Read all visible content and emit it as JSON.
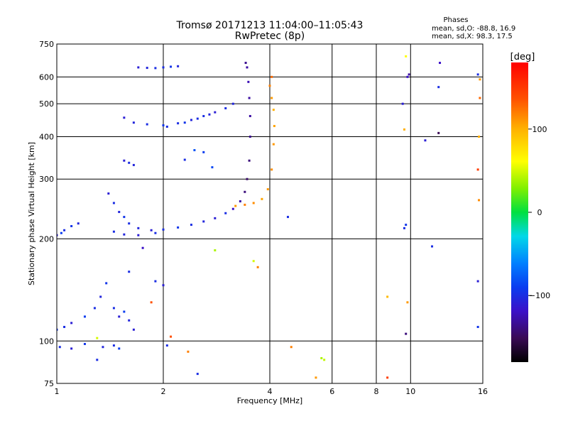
{
  "chart_data": {
    "type": "scatter",
    "title": "Tromsø 20171213 11:04:00–11:05:43",
    "subtitle": "RwPretec (8p)",
    "stats": {
      "heading": "Phases",
      "line_o": "mean, sd,O: -88.8, 16.9",
      "line_x": "mean, sd,X:  98.3, 17.5"
    },
    "xlabel": "Frequency [MHz]",
    "ylabel": "Stationary phase Virtual Height [km]",
    "x_scale": "log",
    "y_scale": "log",
    "xlim": [
      1,
      16
    ],
    "ylim": [
      75,
      750
    ],
    "x_ticks": [
      1,
      2,
      4,
      6,
      8,
      10,
      16
    ],
    "x_tick_labels": [
      "1",
      "2",
      "4",
      "6",
      "8",
      "10",
      "16"
    ],
    "y_ticks": [
      75,
      100,
      200,
      300,
      400,
      500,
      600,
      750
    ],
    "y_tick_labels": [
      "75",
      "100",
      "200",
      "300",
      "400",
      "500",
      "600",
      "750"
    ],
    "grid": true,
    "colorbar": {
      "label": "[deg]",
      "range": [
        -180,
        180
      ],
      "ticks": [
        100,
        0,
        -100
      ],
      "tick_labels": [
        "100",
        "0",
        "−100"
      ]
    },
    "series": [
      {
        "points": [
          [
            1.0,
            205,
            -110
          ],
          [
            1.05,
            212,
            -100
          ],
          [
            1.1,
            218,
            -95
          ],
          [
            1.15,
            222,
            -105
          ],
          [
            1.03,
            208,
            -90
          ],
          [
            1.0,
            108,
            -95
          ],
          [
            1.05,
            110,
            -100
          ],
          [
            1.1,
            113,
            -110
          ],
          [
            1.2,
            118,
            -90
          ],
          [
            1.28,
            125,
            -100
          ],
          [
            1.33,
            135,
            -105
          ],
          [
            1.38,
            148,
            -95
          ],
          [
            1.45,
            125,
            -100
          ],
          [
            1.5,
            118,
            -110
          ],
          [
            1.55,
            122,
            -90
          ],
          [
            1.6,
            115,
            -105
          ],
          [
            1.02,
            96,
            -100
          ],
          [
            1.1,
            95,
            -110
          ],
          [
            1.2,
            98,
            -95
          ],
          [
            1.35,
            96,
            -105
          ],
          [
            1.45,
            97,
            -100
          ],
          [
            1.5,
            95,
            -90
          ],
          [
            1.65,
            108,
            -110
          ],
          [
            1.3,
            88,
            -100
          ],
          [
            1.4,
            272,
            -110
          ],
          [
            1.45,
            255,
            -100
          ],
          [
            1.5,
            240,
            -105
          ],
          [
            1.55,
            232,
            -95
          ],
          [
            1.6,
            222,
            -100
          ],
          [
            1.7,
            215,
            -105
          ],
          [
            1.85,
            212,
            -110
          ],
          [
            2.0,
            213,
            -100
          ],
          [
            2.2,
            216,
            -95
          ],
          [
            2.4,
            220,
            -100
          ],
          [
            2.6,
            225,
            -105
          ],
          [
            2.8,
            230,
            -110
          ],
          [
            3.0,
            238,
            -100
          ],
          [
            3.15,
            245,
            -120
          ],
          [
            3.3,
            258,
            -130
          ],
          [
            3.4,
            275,
            -140
          ],
          [
            3.45,
            300,
            -145
          ],
          [
            3.5,
            340,
            -140
          ],
          [
            3.52,
            400,
            -135
          ],
          [
            3.52,
            460,
            -130
          ],
          [
            3.5,
            520,
            -130
          ],
          [
            3.48,
            580,
            -125
          ],
          [
            3.45,
            640,
            -130
          ],
          [
            3.42,
            660,
            -135
          ],
          [
            1.45,
            210,
            -100
          ],
          [
            1.55,
            206,
            -105
          ],
          [
            1.7,
            205,
            -110
          ],
          [
            1.9,
            208,
            -100
          ],
          [
            1.55,
            455,
            -110
          ],
          [
            1.65,
            440,
            -105
          ],
          [
            1.8,
            435,
            -100
          ],
          [
            2.0,
            432,
            -95
          ],
          [
            2.2,
            438,
            -100
          ],
          [
            2.4,
            448,
            -105
          ],
          [
            2.6,
            460,
            -100
          ],
          [
            2.8,
            472,
            -110
          ],
          [
            3.0,
            485,
            -100
          ],
          [
            3.15,
            500,
            -105
          ],
          [
            2.05,
            428,
            -100
          ],
          [
            2.3,
            440,
            -95
          ],
          [
            2.5,
            452,
            -100
          ],
          [
            2.7,
            465,
            -105
          ],
          [
            1.55,
            340,
            -110
          ],
          [
            1.6,
            335,
            -100
          ],
          [
            1.65,
            330,
            -105
          ],
          [
            1.7,
            640,
            -110
          ],
          [
            1.8,
            638,
            -105
          ],
          [
            1.9,
            637,
            -100
          ],
          [
            2.0,
            640,
            -100
          ],
          [
            2.1,
            643,
            -95
          ],
          [
            2.2,
            645,
            -105
          ],
          [
            3.2,
            250,
            110
          ],
          [
            3.4,
            252,
            120
          ],
          [
            3.6,
            255,
            115
          ],
          [
            3.8,
            262,
            105
          ],
          [
            3.95,
            280,
            110
          ],
          [
            4.05,
            320,
            115
          ],
          [
            4.1,
            380,
            110
          ],
          [
            4.12,
            430,
            105
          ],
          [
            4.1,
            480,
            100
          ],
          [
            4.05,
            520,
            110
          ],
          [
            4.0,
            565,
            120
          ],
          [
            4.05,
            600,
            130
          ],
          [
            4.5,
            232,
            -100
          ],
          [
            2.45,
            365,
            -80
          ],
          [
            2.3,
            342,
            -100
          ],
          [
            2.6,
            360,
            -90
          ],
          [
            2.75,
            325,
            -85
          ],
          [
            9.6,
            215,
            -100
          ],
          [
            9.7,
            220,
            -95
          ],
          [
            9.5,
            500,
            -110
          ],
          [
            9.8,
            600,
            -120
          ],
          [
            9.9,
            610,
            -130
          ],
          [
            9.6,
            420,
            100
          ],
          [
            9.7,
            690,
            60
          ],
          [
            11.0,
            390,
            -110
          ],
          [
            11.5,
            190,
            -100
          ],
          [
            12.0,
            410,
            -150
          ],
          [
            12.1,
            660,
            -120
          ],
          [
            12.0,
            560,
            -100
          ],
          [
            15.5,
            110,
            -95
          ],
          [
            15.5,
            150,
            -110
          ],
          [
            15.7,
            590,
            110
          ],
          [
            15.7,
            520,
            130
          ],
          [
            15.6,
            400,
            100
          ],
          [
            15.5,
            320,
            150
          ],
          [
            15.5,
            610,
            -100
          ],
          [
            15.6,
            260,
            115
          ],
          [
            9.7,
            105,
            -140
          ],
          [
            8.6,
            135,
            95
          ],
          [
            9.8,
            130,
            110
          ],
          [
            8.6,
            78,
            150
          ],
          [
            5.6,
            89,
            40
          ],
          [
            5.7,
            88,
            45
          ],
          [
            5.4,
            78,
            110
          ],
          [
            2.8,
            185,
            40
          ],
          [
            3.6,
            172,
            50
          ],
          [
            3.7,
            165,
            120
          ],
          [
            4.6,
            96,
            120
          ],
          [
            2.35,
            93,
            120
          ],
          [
            2.1,
            103,
            140
          ],
          [
            2.05,
            97,
            -100
          ],
          [
            1.9,
            150,
            -100
          ],
          [
            2.0,
            146,
            -110
          ],
          [
            1.75,
            188,
            -120
          ],
          [
            2.5,
            80,
            -100
          ],
          [
            1.6,
            160,
            -100
          ],
          [
            1.85,
            130,
            140
          ],
          [
            1.3,
            102,
            50
          ]
        ]
      }
    ]
  }
}
